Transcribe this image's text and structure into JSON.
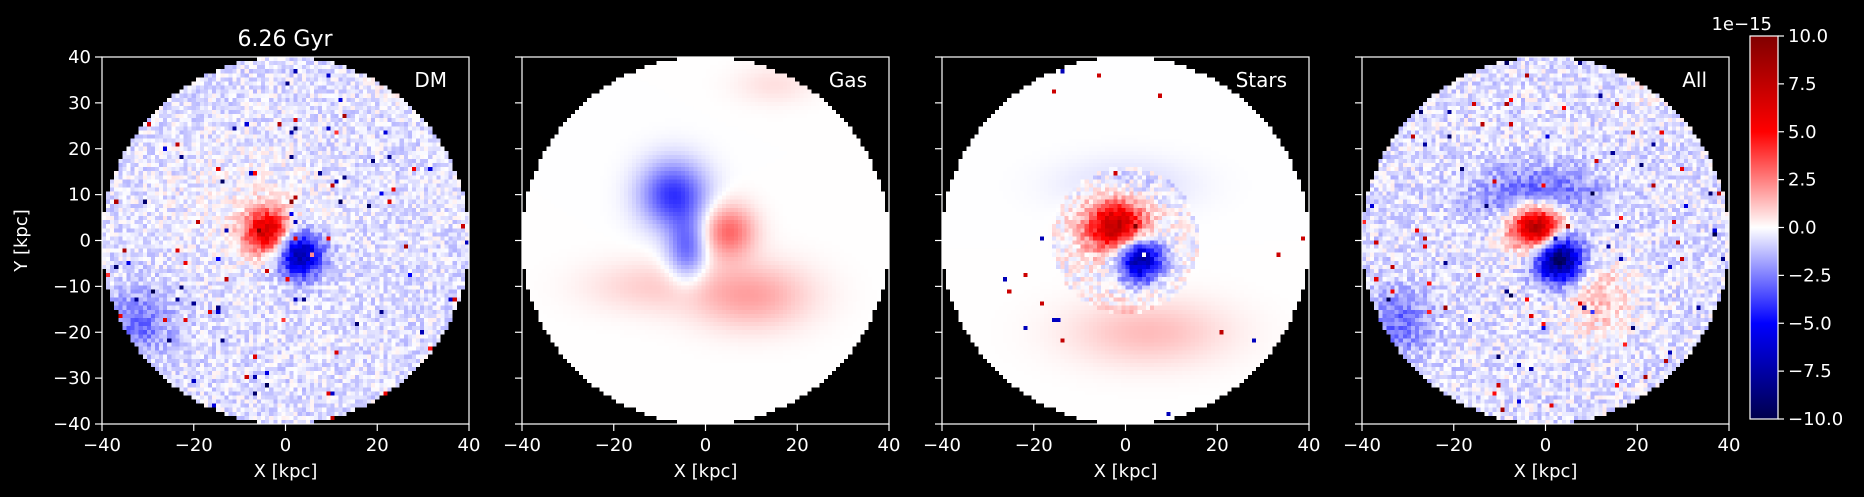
{
  "chart_data": {
    "type": "heatmap",
    "title": "6.26 Gyr",
    "colormap": "seismic",
    "background": "#000000",
    "panels": [
      {
        "label": "DM",
        "xlabel": "X [kpc]",
        "ylabel": "Y [kpc]",
        "xlim": [
          -40,
          40
        ],
        "ylim": [
          -40,
          40
        ]
      },
      {
        "label": "Gas",
        "xlabel": "X [kpc]",
        "ylabel": "",
        "xlim": [
          -40,
          40
        ],
        "ylim": [
          -40,
          40
        ]
      },
      {
        "label": "Stars",
        "xlabel": "X [kpc]",
        "ylabel": "",
        "xlim": [
          -40,
          40
        ],
        "ylim": [
          -40,
          40
        ]
      },
      {
        "label": "All",
        "xlabel": "X [kpc]",
        "ylabel": "",
        "xlim": [
          -40,
          40
        ],
        "ylim": [
          -40,
          40
        ]
      }
    ],
    "xticks": [
      "−40",
      "−20",
      "0",
      "20",
      "40"
    ],
    "yticks": [
      "40",
      "30",
      "20",
      "10",
      "0",
      "−10",
      "−20",
      "−30",
      "−40"
    ],
    "colorbar": {
      "offset_label": "1e−15",
      "range": [
        -10,
        10
      ],
      "ticks": [
        "10.0",
        "7.5",
        "5.0",
        "2.5",
        "0.0",
        "−2.5",
        "−5.0",
        "−7.5",
        "−10.0"
      ]
    },
    "data_extent_radius_kpc": 40
  }
}
